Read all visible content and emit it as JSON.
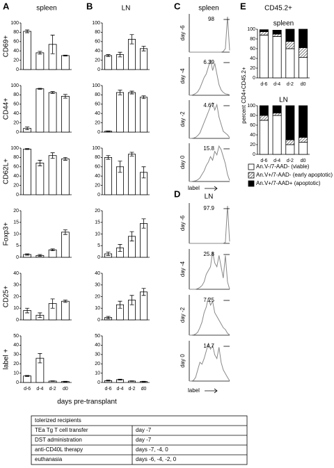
{
  "panels": {
    "A": {
      "letter": "A",
      "title": "spleen"
    },
    "B": {
      "letter": "B",
      "title": "LN"
    },
    "C": {
      "letter": "C",
      "title": "spleen",
      "xlabel": "label"
    },
    "D": {
      "letter": "D",
      "title": "LN",
      "xlabel": "label"
    },
    "E": {
      "letter": "E",
      "title": "CD45.2+",
      "ylabel": "percent CD4+CD45.2+"
    }
  },
  "shared_xlabel": "days pre-transplant",
  "chart_data": [
    {
      "type": "bar",
      "ylabel": "CD69+",
      "color": "#ffffff",
      "values": [
        82,
        36,
        54,
        30
      ],
      "errors": [
        3,
        3,
        20,
        1
      ],
      "ylim": [
        0,
        100
      ],
      "yticks": [
        0,
        20,
        40,
        60,
        80,
        100
      ]
    },
    {
      "type": "bar",
      "ylabel": "CD44+",
      "color": "#ffffff",
      "values": [
        8,
        93,
        85,
        77
      ],
      "errors": [
        3,
        1,
        2,
        4
      ],
      "ylim": [
        0,
        100
      ],
      "yticks": [
        0,
        20,
        40,
        60,
        80,
        100
      ]
    },
    {
      "type": "bar",
      "ylabel": "CD62L+",
      "color": "#ffffff",
      "values": [
        98,
        68,
        84,
        77
      ],
      "errors": [
        1,
        6,
        6,
        3
      ],
      "ylim": [
        0,
        100
      ],
      "yticks": [
        0,
        20,
        40,
        60,
        80,
        100
      ]
    },
    {
      "type": "bar",
      "ylabel": "Foxp3+",
      "color": "#ffffff",
      "values": [
        1.2,
        0.8,
        3.2,
        10.8
      ],
      "errors": [
        0.3,
        0.4,
        0.4,
        1
      ],
      "ylim": [
        0,
        20
      ],
      "yticks": [
        0,
        5,
        10,
        15,
        20
      ]
    },
    {
      "type": "bar",
      "ylabel": "CD25+",
      "color": "#ffffff",
      "values": [
        8,
        4,
        14,
        16
      ],
      "errors": [
        2,
        2,
        4,
        1
      ],
      "ylim": [
        0,
        40
      ],
      "yticks": [
        0,
        10,
        20,
        30,
        40
      ]
    },
    {
      "type": "bar",
      "ylabel": "label +",
      "color": "#ffffff",
      "categories": [
        "d-6",
        "d-4",
        "d-2",
        "d0"
      ],
      "values": [
        7,
        26,
        1.5,
        1
      ],
      "errors": [
        0.5,
        5,
        0.3,
        0.3
      ],
      "ylim": [
        0,
        50
      ],
      "yticks": [
        0,
        10,
        20,
        30,
        40,
        50
      ]
    },
    {
      "type": "bar",
      "color": "#ffffff",
      "values": [
        30,
        32,
        65,
        45
      ],
      "errors": [
        2,
        5,
        10,
        5
      ],
      "ylim": [
        0,
        100
      ],
      "yticks": [
        0,
        20,
        40,
        60,
        80,
        100
      ]
    },
    {
      "type": "bar",
      "color": "#ffffff",
      "values": [
        2,
        85,
        85,
        75
      ],
      "errors": [
        0.5,
        5,
        3,
        3
      ],
      "ylim": [
        0,
        100
      ],
      "yticks": [
        0,
        20,
        40,
        60,
        80,
        100
      ]
    },
    {
      "type": "bar",
      "color": "#ffffff",
      "values": [
        80,
        60,
        87,
        48
      ],
      "errors": [
        4,
        12,
        4,
        12
      ],
      "ylim": [
        0,
        100
      ],
      "yticks": [
        0,
        20,
        40,
        60,
        80,
        100
      ]
    },
    {
      "type": "bar",
      "color": "#ffffff",
      "values": [
        1.5,
        4,
        9,
        14.5
      ],
      "errors": [
        0.7,
        1.5,
        2,
        2
      ],
      "ylim": [
        0,
        20
      ],
      "yticks": [
        0,
        5,
        10,
        15,
        20
      ]
    },
    {
      "type": "bar",
      "color": "#ffffff",
      "values": [
        2,
        13,
        17,
        24
      ],
      "errors": [
        1,
        3,
        4,
        3
      ],
      "ylim": [
        0,
        40
      ],
      "yticks": [
        0,
        10,
        20,
        30,
        40
      ]
    },
    {
      "type": "bar",
      "color": "#ffffff",
      "categories": [
        "d-6",
        "d-4",
        "d-2",
        "d0"
      ],
      "values": [
        2,
        3,
        1.5,
        1
      ],
      "errors": [
        0.5,
        0.5,
        0.3,
        0.3
      ],
      "ylim": [
        0,
        50
      ],
      "yticks": [
        0,
        10,
        20,
        30,
        40,
        50
      ]
    },
    {
      "type": "line",
      "label": "day -6",
      "annotation": "98",
      "color": "#888888",
      "ylim": [
        0,
        100
      ],
      "values": [
        0,
        0,
        0,
        0,
        0,
        0,
        0,
        0,
        0,
        0,
        0,
        0,
        0,
        0,
        0,
        0,
        2,
        10,
        100,
        5
      ]
    },
    {
      "type": "line",
      "label": "day -4",
      "annotation": "6.39",
      "color": "#888888",
      "ylim": [
        0,
        100
      ],
      "values": [
        0,
        0,
        2,
        5,
        10,
        20,
        35,
        50,
        60,
        80,
        100,
        70,
        90,
        60,
        30,
        15,
        8,
        4,
        3,
        1
      ]
    },
    {
      "type": "line",
      "label": "day -2",
      "annotation": "4.67",
      "color": "#888888",
      "ylim": [
        0,
        100
      ],
      "values": [
        0,
        0,
        1,
        3,
        8,
        15,
        30,
        45,
        60,
        75,
        90,
        100,
        80,
        95,
        60,
        40,
        20,
        15,
        10,
        2
      ]
    },
    {
      "type": "line",
      "label": "day 0",
      "annotation": "15.8",
      "color": "#888888",
      "ylim": [
        0,
        100
      ],
      "values": [
        0,
        0,
        1,
        2,
        5,
        10,
        20,
        30,
        45,
        55,
        70,
        60,
        85,
        75,
        100,
        90,
        70,
        50,
        20,
        3
      ]
    },
    {
      "type": "line",
      "label": "day -6",
      "annotation": "97.9",
      "color": "#888888",
      "ylim": [
        0,
        100
      ],
      "values": [
        0,
        0,
        0,
        0,
        0,
        0,
        0,
        0,
        0,
        0,
        0,
        0,
        0,
        0,
        0,
        0,
        0,
        3,
        100,
        5
      ]
    },
    {
      "type": "line",
      "label": "day -4",
      "annotation": "25.8",
      "color": "#888888",
      "ylim": [
        0,
        100
      ],
      "values": [
        0,
        0,
        0,
        0,
        2,
        5,
        10,
        20,
        40,
        50,
        60,
        100,
        70,
        60,
        90,
        60,
        30,
        90,
        20,
        0
      ]
    },
    {
      "type": "line",
      "label": "day -2",
      "annotation": "7.25",
      "color": "#888888",
      "ylim": [
        0,
        100
      ],
      "values": [
        0,
        0,
        1,
        3,
        8,
        20,
        35,
        60,
        75,
        100,
        80,
        90,
        60,
        50,
        40,
        30,
        20,
        15,
        5,
        1
      ]
    },
    {
      "type": "line",
      "label": "day 0",
      "annotation": "14.7",
      "color": "#888888",
      "ylim": [
        0,
        100
      ],
      "values": [
        0,
        0,
        2,
        10,
        30,
        50,
        45,
        60,
        80,
        100,
        85,
        95,
        70,
        60,
        90,
        50,
        30,
        20,
        10,
        1
      ]
    },
    {
      "type": "stacked-bar",
      "title": "spleen",
      "categories": [
        "d-6",
        "d-4",
        "d-2",
        "d0"
      ],
      "ylim": [
        0,
        100
      ],
      "yticks": [
        0,
        20,
        40,
        60,
        80,
        100
      ],
      "series": [
        {
          "name": "An.V-/7-AAD- (viable)",
          "color": "#ffffff",
          "values": [
            88,
            85,
            60,
            42
          ]
        },
        {
          "name": "An.V+/7-AAD- (early apoptotic)",
          "color": "#555555",
          "pattern": "hatch",
          "values": [
            7,
            5,
            15,
            20
          ]
        },
        {
          "name": "An.V+/7-AAD+ (apoptotic)",
          "color": "#000000",
          "values": [
            4,
            8,
            25,
            38
          ]
        }
      ]
    },
    {
      "type": "stacked-bar",
      "title": "LN",
      "categories": [
        "d-6",
        "d-4",
        "d-2",
        "d0"
      ],
      "ylim": [
        0,
        100
      ],
      "yticks": [
        0,
        20,
        40,
        60,
        80,
        100
      ],
      "series": [
        {
          "color": "#ffffff",
          "values": [
            70,
            80,
            20,
            25
          ]
        },
        {
          "color": "#555555",
          "pattern": "hatch",
          "values": [
            10,
            5,
            10,
            10
          ]
        },
        {
          "color": "#000000",
          "values": [
            20,
            15,
            70,
            65
          ]
        }
      ]
    }
  ],
  "table": {
    "header": "tolerized recipients",
    "rows": [
      [
        "TEa Tg T cell transfer",
        "day  -7"
      ],
      [
        "DST administration",
        "day  -7"
      ],
      [
        "anti-CD40L therapy",
        "days -7, -4, 0"
      ],
      [
        "euthanasia",
        "days -6, -4, -2, 0"
      ]
    ]
  }
}
